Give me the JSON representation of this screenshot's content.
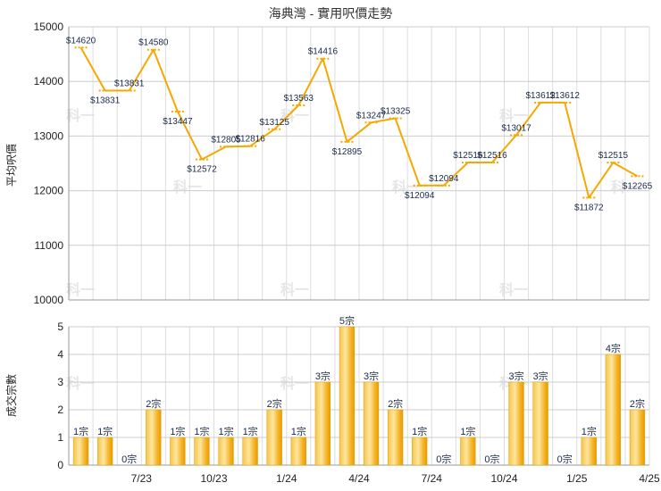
{
  "chart_data": [
    {
      "type": "line",
      "title": "海典灣 - 實用呎價走勢",
      "ylabel": "平均呎價",
      "ylim": [
        10000,
        15000
      ],
      "yticks": [
        "10000",
        "11000",
        "12000",
        "13000",
        "14000",
        "15000"
      ],
      "grid": true,
      "color": "#f5a800",
      "values": [
        14620,
        13831,
        13831,
        14580,
        13447,
        12572,
        12805,
        12816,
        13125,
        13563,
        14416,
        12895,
        13247,
        13325,
        12094,
        12094,
        12516,
        12516,
        13017,
        13612,
        13612,
        11872,
        12515,
        12265
      ],
      "labels": [
        "$14620",
        "$13831",
        "$13831",
        "$14580",
        "$13447",
        "$12572",
        "$12805",
        "$12816",
        "$13125",
        "$13563",
        "$14416",
        "$12895",
        "$13247",
        "$13325",
        "$12094",
        "$12094",
        "$12516",
        "$12516",
        "$13017",
        "$13612",
        "$13612",
        "$11872",
        "$12515",
        "$12265"
      ],
      "watermark": "科一"
    },
    {
      "type": "bar",
      "ylabel": "成交宗數",
      "ylim": [
        0,
        5
      ],
      "yticks": [
        "0",
        "1",
        "2",
        "3",
        "4",
        "5"
      ],
      "grid": true,
      "color": "#f5a800",
      "values": [
        1,
        1,
        0,
        2,
        1,
        1,
        1,
        1,
        2,
        1,
        3,
        5,
        3,
        2,
        1,
        0,
        1,
        0,
        3,
        3,
        0,
        1,
        4,
        2
      ],
      "labels": [
        "1宗",
        "1宗",
        "0宗",
        "2宗",
        "1宗",
        "1宗",
        "1宗",
        "1宗",
        "2宗",
        "1宗",
        "3宗",
        "5宗",
        "3宗",
        "2宗",
        "1宗",
        "0宗",
        "1宗",
        "0宗",
        "3宗",
        "3宗",
        "0宗",
        "1宗",
        "4宗",
        "2宗"
      ],
      "x_tick_labels": [
        {
          "index": 2,
          "label": "7/23"
        },
        {
          "index": 5,
          "label": "10/23"
        },
        {
          "index": 8,
          "label": "1/24"
        },
        {
          "index": 11,
          "label": "4/24"
        },
        {
          "index": 14,
          "label": "7/24"
        },
        {
          "index": 17,
          "label": "10/24"
        },
        {
          "index": 20,
          "label": "1/25"
        },
        {
          "index": 23,
          "label": "4/25"
        }
      ],
      "watermark": "科一"
    }
  ]
}
